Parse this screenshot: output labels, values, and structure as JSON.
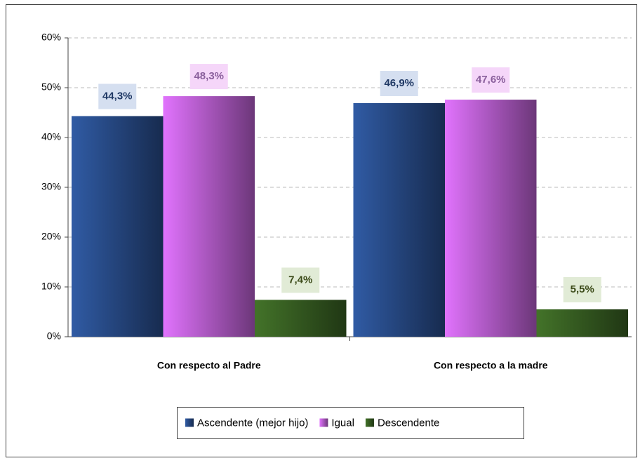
{
  "chart_data": {
    "type": "bar",
    "categories": [
      "Con respecto al Padre",
      "Con respecto a la madre"
    ],
    "series": [
      {
        "name": "Ascendente (mejor hijo)",
        "color": "#2a4f8f",
        "values": [
          44.3,
          46.9
        ],
        "value_labels": [
          "44,3%",
          "46,9%"
        ]
      },
      {
        "name": "Igual",
        "color": "#c464dc",
        "values": [
          48.3,
          47.6
        ],
        "value_labels": [
          "48,3%",
          "47,6%"
        ]
      },
      {
        "name": "Descendente",
        "color": "#3a6424",
        "values": [
          7.4,
          5.5
        ],
        "value_labels": [
          "7,4%",
          "5,5%"
        ]
      }
    ],
    "ylim": [
      0,
      60
    ],
    "yticks": [
      {
        "value": 0,
        "label": "0%"
      },
      {
        "value": 10,
        "label": "10%"
      },
      {
        "value": 20,
        "label": "20%"
      },
      {
        "value": 30,
        "label": "30%"
      },
      {
        "value": 40,
        "label": "40%"
      },
      {
        "value": 50,
        "label": "50%"
      },
      {
        "value": 60,
        "label": "60%"
      }
    ],
    "grid": true,
    "legend": "bottom"
  }
}
